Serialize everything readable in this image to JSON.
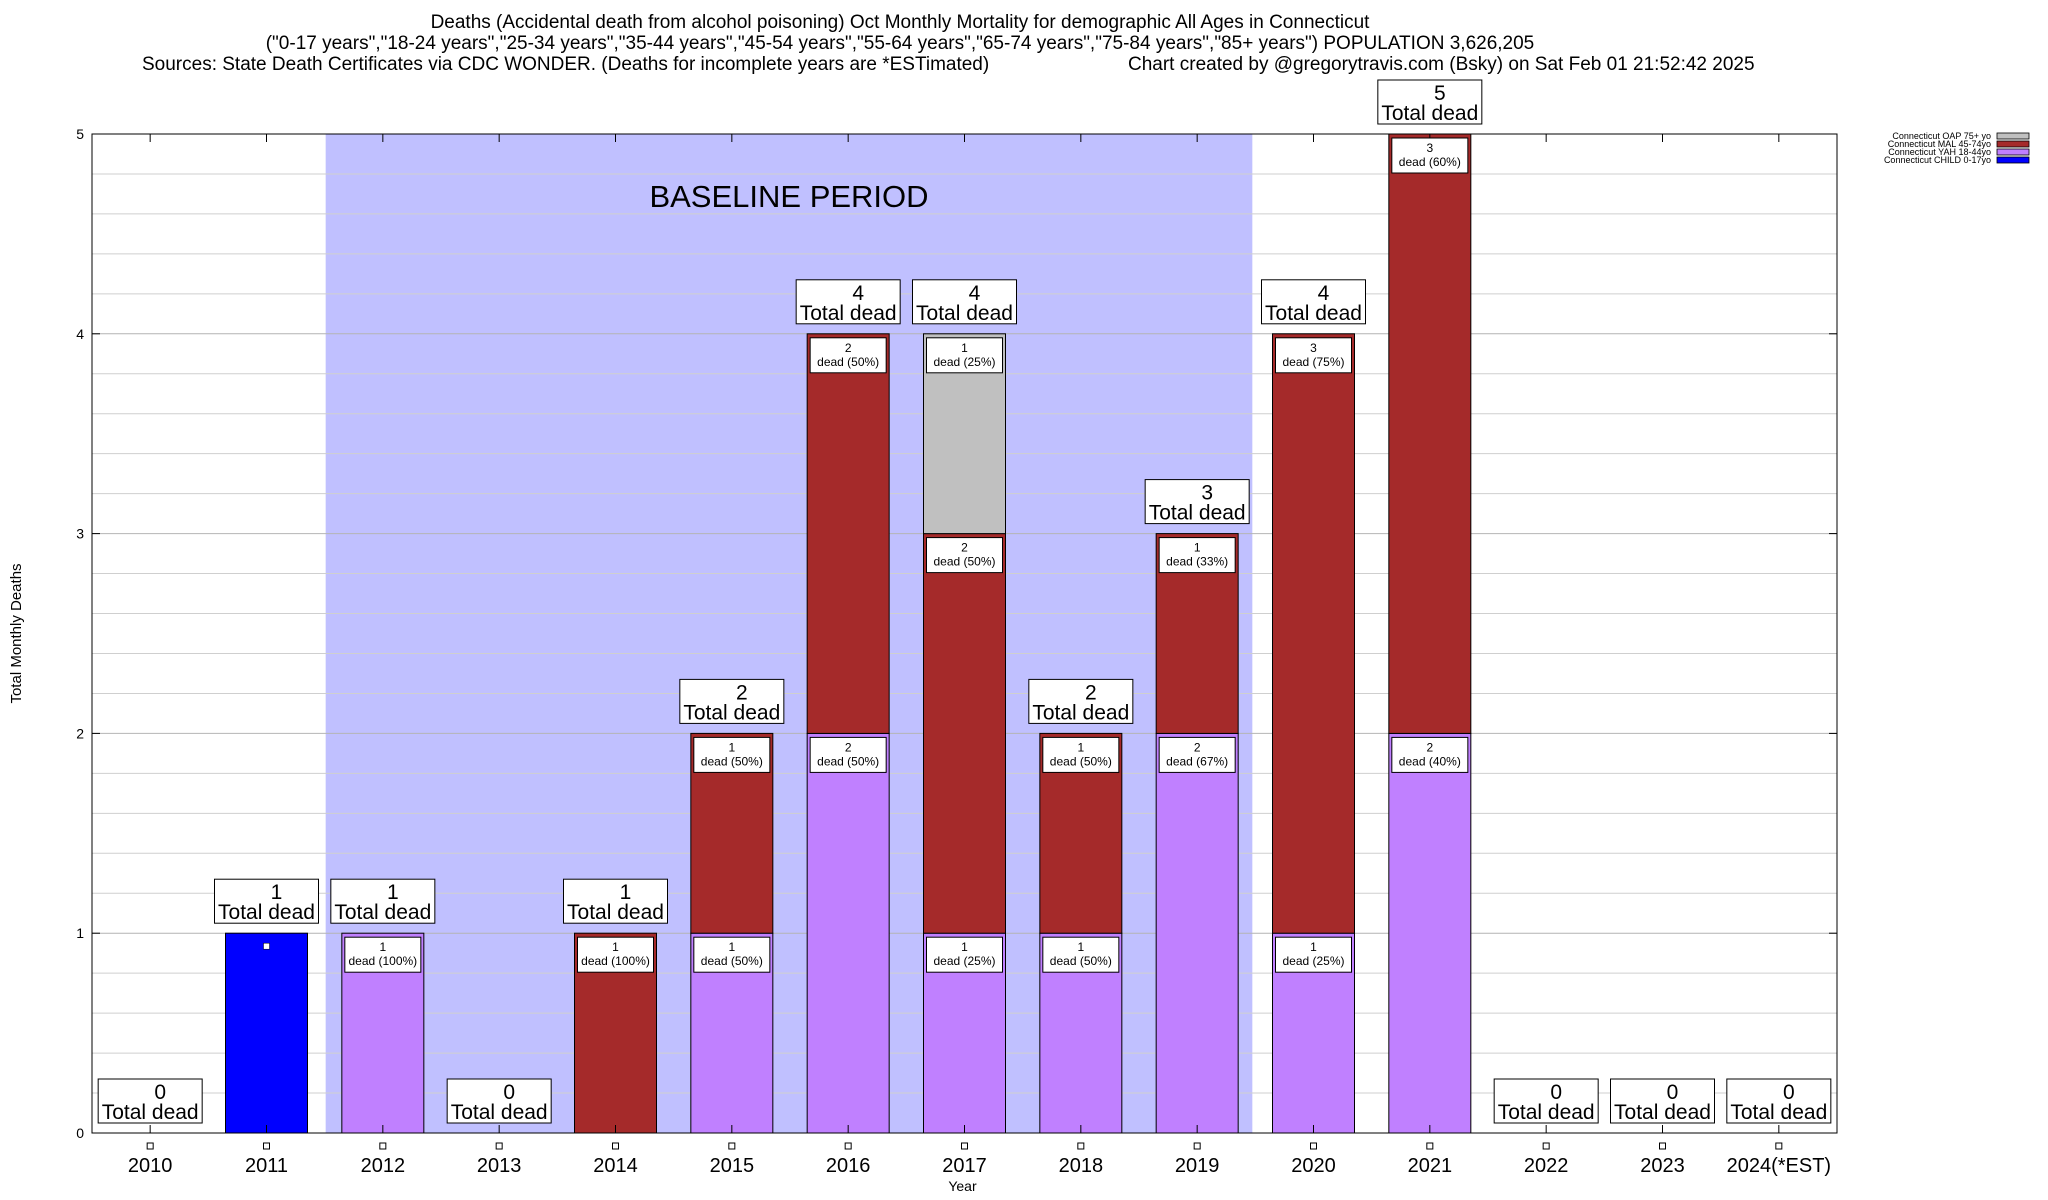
{
  "header": {
    "line1": "Deaths (Accidental death from alcohol poisoning) Oct Monthly Mortality for demographic All Ages in Connecticut",
    "line2": "(\"0-17 years\",\"18-24 years\",\"25-34 years\",\"35-44 years\",\"45-54 years\",\"55-64 years\",\"65-74 years\",\"75-84 years\",\"85+ years\") POPULATION 3,626,205",
    "line3_left": "Sources: State Death Certificates via CDC WONDER. (Deaths for incomplete years are *ESTimated)",
    "line3_right": "Chart created by @gregorytravis.com (Bsky) on Sat Feb 01 21:52:42 2025"
  },
  "chart_data": {
    "type": "bar",
    "stacked": true,
    "xlabel": "Year",
    "ylabel": "Total Monthly Deaths",
    "ylim": [
      0,
      5
    ],
    "yticks": [
      "0",
      "1",
      "2",
      "3",
      "4",
      "5"
    ],
    "grid": true,
    "legend_position": "top-right",
    "categories": [
      "2010",
      "2011",
      "2012",
      "2013",
      "2014",
      "2015",
      "2016",
      "2017",
      "2018",
      "2019",
      "2020",
      "2021",
      "2022",
      "2023",
      "2024(*EST)"
    ],
    "series": [
      {
        "name": "Connecticut CHILD 0-17yo",
        "color": "#0000ff",
        "values": [
          0,
          1,
          0,
          0,
          0,
          0,
          0,
          0,
          0,
          0,
          0,
          0,
          0,
          0,
          0
        ]
      },
      {
        "name": "Connecticut YAH 18-44yo",
        "color": "#c080ff",
        "values": [
          0,
          0,
          1,
          0,
          0,
          1,
          2,
          1,
          1,
          2,
          1,
          2,
          0,
          0,
          0
        ]
      },
      {
        "name": "Connecticut MAL 45-74yo",
        "color": "#a52a2a",
        "values": [
          0,
          0,
          0,
          0,
          1,
          1,
          2,
          2,
          1,
          1,
          3,
          3,
          0,
          0,
          0
        ]
      },
      {
        "name": "Connecticut OAP 75+ yo",
        "color": "#c0c0c0",
        "values": [
          0,
          0,
          0,
          0,
          0,
          0,
          0,
          1,
          0,
          0,
          0,
          0,
          0,
          0,
          0
        ]
      }
    ],
    "totals": [
      0,
      1,
      1,
      0,
      1,
      2,
      4,
      4,
      2,
      3,
      4,
      5,
      0,
      0,
      0
    ],
    "total_label": "Total dead",
    "segment_labels": [
      {
        "category": "2012",
        "series": "Connecticut YAH 18-44yo",
        "line1": "1",
        "line2": "dead (100%)"
      },
      {
        "category": "2014",
        "series": "Connecticut MAL 45-74yo",
        "line1": "1",
        "line2": "dead (100%)"
      },
      {
        "category": "2015",
        "series": "Connecticut YAH 18-44yo",
        "line1": "1",
        "line2": "dead (50%)"
      },
      {
        "category": "2015",
        "series": "Connecticut MAL 45-74yo",
        "line1": "1",
        "line2": "dead (50%)"
      },
      {
        "category": "2016",
        "series": "Connecticut YAH 18-44yo",
        "line1": "2",
        "line2": "dead (50%)"
      },
      {
        "category": "2016",
        "series": "Connecticut MAL 45-74yo",
        "line1": "2",
        "line2": "dead (50%)"
      },
      {
        "category": "2017",
        "series": "Connecticut YAH 18-44yo",
        "line1": "1",
        "line2": "dead (25%)"
      },
      {
        "category": "2017",
        "series": "Connecticut MAL 45-74yo",
        "line1": "2",
        "line2": "dead (50%)"
      },
      {
        "category": "2017",
        "series": "Connecticut OAP 75+ yo",
        "line1": "1",
        "line2": "dead (25%)"
      },
      {
        "category": "2018",
        "series": "Connecticut YAH 18-44yo",
        "line1": "1",
        "line2": "dead (50%)"
      },
      {
        "category": "2018",
        "series": "Connecticut MAL 45-74yo",
        "line1": "1",
        "line2": "dead (50%)"
      },
      {
        "category": "2019",
        "series": "Connecticut YAH 18-44yo",
        "line1": "2",
        "line2": "dead (67%)"
      },
      {
        "category": "2019",
        "series": "Connecticut MAL 45-74yo",
        "line1": "1",
        "line2": "dead (33%)"
      },
      {
        "category": "2020",
        "series": "Connecticut YAH 18-44yo",
        "line1": "1",
        "line2": "dead (25%)"
      },
      {
        "category": "2020",
        "series": "Connecticut MAL 45-74yo",
        "line1": "3",
        "line2": "dead (75%)"
      },
      {
        "category": "2021",
        "series": "Connecticut YAH 18-44yo",
        "line1": "2",
        "line2": "dead (40%)"
      },
      {
        "category": "2021",
        "series": "Connecticut MAL 45-74yo",
        "line1": "3",
        "line2": "dead (60%)"
      }
    ],
    "baseline": {
      "label": "BASELINE PERIOD",
      "from_category": "2012",
      "to_category": "2019",
      "color": "#c0c0ff"
    }
  }
}
